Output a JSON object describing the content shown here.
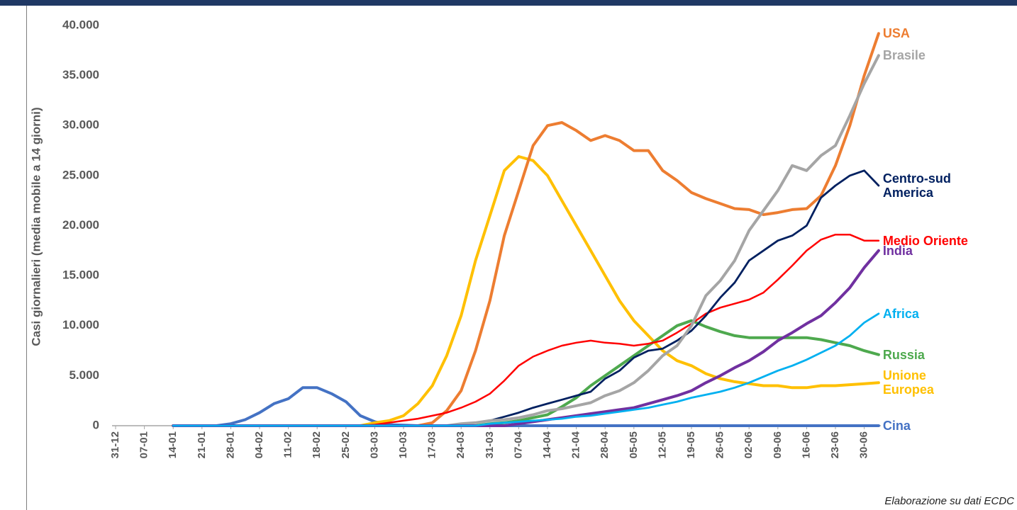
{
  "chart_data": {
    "type": "line",
    "y_label": "Casi giornalieri (media mobile a 14 giorni)",
    "source": "Elaborazione su dati ECDC",
    "categories": [
      "31-12",
      null,
      "07-01",
      null,
      "14-01",
      null,
      "21-01",
      null,
      "28-01",
      null,
      "04-02",
      null,
      "11-02",
      null,
      "18-02",
      null,
      "25-02",
      null,
      "03-03",
      null,
      "10-03",
      null,
      "17-03",
      null,
      "24-03",
      null,
      "31-03",
      null,
      "07-04",
      null,
      "14-04",
      null,
      "21-04",
      null,
      "28-04",
      null,
      "05-05",
      null,
      "12-05",
      null,
      "19-05",
      null,
      "26-05",
      null,
      "02-06",
      null,
      "09-06",
      null,
      "16-06",
      null,
      "23-06",
      null,
      "30-06",
      null
    ],
    "ylim": [
      0,
      40000
    ],
    "yticks": [
      0,
      {
        "value": 5000,
        "label": "5.000"
      },
      {
        "value": 10000,
        "label": "10.000"
      },
      {
        "value": 15000,
        "label": "15.000"
      },
      {
        "value": 20000,
        "label": "20.000"
      },
      {
        "value": 25000,
        "label": "25.000"
      },
      {
        "value": 30000,
        "label": "30.000"
      },
      {
        "value": 35000,
        "label": "35.000"
      },
      {
        "value": 40000,
        "label": "40.000"
      }
    ],
    "grid": false,
    "series": [
      {
        "name": "Cina",
        "color": "#4472c4",
        "values": [
          null,
          null,
          null,
          null,
          0,
          0,
          0,
          0,
          200,
          600,
          1300,
          2200,
          2700,
          3800,
          3800,
          3200,
          2400,
          1000,
          400,
          100,
          50,
          0,
          0,
          0,
          0,
          0,
          0,
          0,
          0,
          0,
          0,
          0,
          0,
          0,
          0,
          0,
          0,
          0,
          0,
          0,
          0,
          0,
          0,
          0,
          0,
          0,
          0,
          0,
          0,
          0,
          0,
          0,
          0,
          0
        ]
      },
      {
        "name": "Unione Europea",
        "color": "#ffc000",
        "values": [
          null,
          null,
          null,
          null,
          0,
          0,
          0,
          0,
          0,
          0,
          0,
          0,
          0,
          0,
          0,
          0,
          0,
          0,
          300,
          500,
          1000,
          2200,
          4000,
          7000,
          11000,
          16500,
          21000,
          25500,
          26900,
          26500,
          25000,
          22500,
          20000,
          17500,
          15000,
          12500,
          10500,
          9000,
          7500,
          6500,
          6000,
          5200,
          4700,
          4400,
          4200,
          4000,
          4000,
          3800,
          3800,
          4000,
          4000,
          4100,
          4200,
          4300
        ]
      },
      {
        "name": "USA",
        "color": "#ed7d31",
        "values": [
          null,
          null,
          null,
          null,
          0,
          0,
          0,
          0,
          0,
          0,
          0,
          0,
          0,
          0,
          0,
          0,
          0,
          0,
          0,
          0,
          0,
          0,
          300,
          1500,
          3500,
          7500,
          12500,
          19000,
          23500,
          28000,
          30000,
          30300,
          29500,
          28500,
          29000,
          28500,
          27500,
          27500,
          25500,
          24500,
          23300,
          22700,
          22200,
          21700,
          21600,
          21100,
          21300,
          21600,
          21700,
          23000,
          26000,
          30000,
          35000,
          39200
        ]
      },
      {
        "name": "Russia",
        "color": "#4ea94e",
        "values": [
          null,
          null,
          null,
          null,
          0,
          0,
          0,
          0,
          0,
          0,
          0,
          0,
          0,
          0,
          0,
          0,
          0,
          0,
          0,
          0,
          0,
          0,
          0,
          0,
          0,
          0,
          200,
          300,
          500,
          800,
          1100,
          1900,
          2800,
          4000,
          5000,
          6000,
          7000,
          8000,
          9000,
          10000,
          10500,
          9900,
          9400,
          9000,
          8800,
          8800,
          8800,
          8800,
          8800,
          8600,
          8300,
          8000,
          7500,
          7100
        ]
      },
      {
        "name": "Medio Oriente",
        "color": "#ff0000",
        "values": [
          null,
          null,
          null,
          null,
          0,
          0,
          0,
          0,
          0,
          0,
          0,
          0,
          0,
          0,
          0,
          0,
          0,
          0,
          100,
          300,
          500,
          700,
          1000,
          1300,
          1800,
          2400,
          3200,
          4500,
          6000,
          6900,
          7500,
          8000,
          8300,
          8500,
          8300,
          8200,
          8000,
          8200,
          8500,
          9300,
          10200,
          11200,
          11800,
          12200,
          12600,
          13300,
          14600,
          16000,
          17500,
          18600,
          19100,
          19100,
          18500,
          18500
        ]
      },
      {
        "name": "Centro-sud America",
        "color": "#002060",
        "values": [
          null,
          null,
          null,
          null,
          0,
          0,
          0,
          0,
          0,
          0,
          0,
          0,
          0,
          0,
          0,
          0,
          0,
          0,
          0,
          0,
          0,
          0,
          0,
          0,
          200,
          300,
          500,
          900,
          1300,
          1800,
          2200,
          2600,
          3000,
          3400,
          4700,
          5500,
          6800,
          7500,
          7700,
          8500,
          9500,
          11000,
          12800,
          14300,
          16500,
          17500,
          18500,
          19000,
          20000,
          22800,
          24000,
          25000,
          25500,
          24000
        ]
      },
      {
        "name": "Brasile",
        "color": "#a5a5a5",
        "values": [
          null,
          null,
          null,
          null,
          0,
          0,
          0,
          0,
          0,
          0,
          0,
          0,
          0,
          0,
          0,
          0,
          0,
          0,
          0,
          0,
          0,
          0,
          0,
          0,
          200,
          300,
          500,
          600,
          800,
          1100,
          1500,
          1700,
          2000,
          2300,
          3000,
          3500,
          4300,
          5500,
          7000,
          8000,
          10000,
          13000,
          14500,
          16500,
          19500,
          21500,
          23500,
          26000,
          25500,
          27000,
          28000,
          31000,
          34200,
          37000
        ]
      },
      {
        "name": "India",
        "color": "#7030a0",
        "values": [
          null,
          null,
          null,
          null,
          0,
          0,
          0,
          0,
          0,
          0,
          0,
          0,
          0,
          0,
          0,
          0,
          0,
          0,
          0,
          0,
          0,
          0,
          0,
          0,
          0,
          0,
          0,
          0,
          200,
          400,
          600,
          800,
          1000,
          1200,
          1400,
          1600,
          1800,
          2200,
          2600,
          3000,
          3500,
          4300,
          5000,
          5800,
          6500,
          7400,
          8500,
          9300,
          10200,
          11000,
          12300,
          13800,
          15800,
          17500
        ]
      },
      {
        "name": "Africa",
        "color": "#00b0f0",
        "values": [
          null,
          null,
          null,
          null,
          0,
          0,
          0,
          0,
          0,
          0,
          0,
          0,
          0,
          0,
          0,
          0,
          0,
          0,
          0,
          0,
          0,
          0,
          0,
          0,
          0,
          0,
          200,
          300,
          400,
          500,
          600,
          700,
          900,
          1000,
          1200,
          1400,
          1600,
          1800,
          2100,
          2400,
          2800,
          3100,
          3400,
          3800,
          4300,
          4900,
          5500,
          6000,
          6600,
          7300,
          8000,
          9000,
          10300,
          11200
        ]
      }
    ]
  }
}
